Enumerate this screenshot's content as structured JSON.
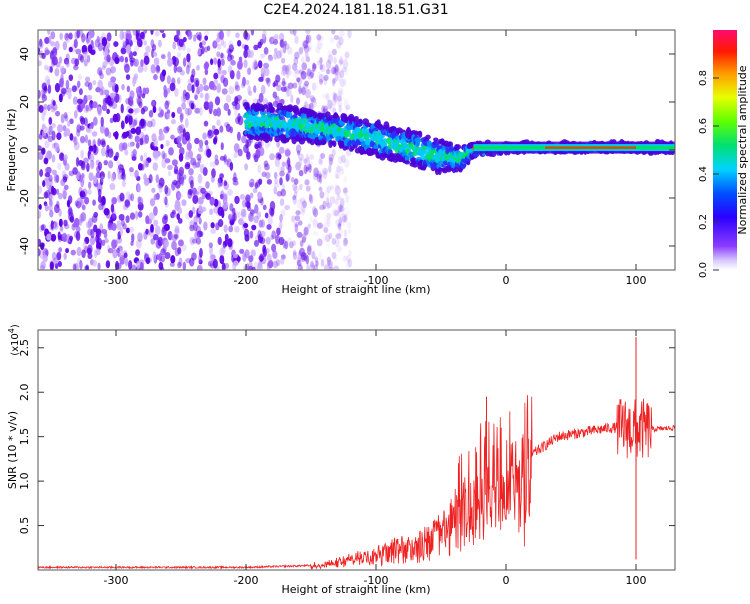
{
  "title": "C2E4.2024.181.18.51.G31",
  "chart_data": [
    {
      "type": "heatmap",
      "xlabel": "Height of straight line (km)",
      "ylabel": "Frequency (Hz)",
      "xlim": [
        -360,
        130
      ],
      "ylim": [
        -50,
        50
      ],
      "x_ticks": [
        -300,
        -200,
        -100,
        0,
        100
      ],
      "y_ticks": [
        -40,
        -20,
        0,
        20,
        40
      ],
      "colorbar": {
        "label": "Normalized spectral amplitude",
        "range": [
          0,
          1
        ],
        "ticks": [
          "0.0",
          "0.2",
          "0.4",
          "0.6",
          "0.8"
        ],
        "ticks_values": [
          0.0,
          0.2,
          0.4,
          0.6,
          0.8
        ]
      },
      "ridge": [
        {
          "x": -360,
          "y": 0,
          "width": 0,
          "note": ""
        },
        {
          "x": -200,
          "y": 12,
          "width": 7
        },
        {
          "x": -170,
          "y": 11,
          "width": 7
        },
        {
          "x": -140,
          "y": 9,
          "width": 6
        },
        {
          "x": -110,
          "y": 6,
          "width": 7
        },
        {
          "x": -80,
          "y": 2,
          "width": 7
        },
        {
          "x": -55,
          "y": -2,
          "width": 7
        },
        {
          "x": -35,
          "y": -4,
          "width": 5
        },
        {
          "x": -25,
          "y": 0,
          "width": 3
        },
        {
          "x": 0,
          "y": 1,
          "width": 2
        },
        {
          "x": 50,
          "y": 1,
          "width": 2
        },
        {
          "x": 100,
          "y": 1,
          "width": 2
        },
        {
          "x": 130,
          "y": 1,
          "width": 2
        }
      ],
      "noise_region": {
        "x_start": -360,
        "x_end": -140
      },
      "colors": {
        "noise": "#5a00e6",
        "ridge_edge": "#4b00d6",
        "ridge_mid": "#00c8ff",
        "ridge_core": "#00e060",
        "peak": "#ff2a00"
      }
    },
    {
      "type": "line",
      "xlabel": "Height of straight line (km)",
      "ylabel": "SNR (10 * v/v)",
      "y_multiplier_label": "(x10",
      "y_multiplier_exp": "4",
      "xlim": [
        -360,
        130
      ],
      "ylim": [
        0,
        2.7
      ],
      "x_ticks": [
        -300,
        -200,
        -100,
        0,
        100
      ],
      "y_ticks": [
        0.5,
        1.0,
        1.5,
        2.0,
        2.5
      ],
      "y_tick_labels": [
        "0.5",
        "1.0",
        "1.5",
        "2.0",
        "2.5"
      ],
      "series": [
        {
          "color": "#ee2222",
          "trend": [
            [
              -360,
              0.03
            ],
            [
              -200,
              0.03
            ],
            [
              -150,
              0.05
            ],
            [
              -130,
              0.1
            ],
            [
              -110,
              0.18
            ],
            [
              -90,
              0.28
            ],
            [
              -70,
              0.35
            ],
            [
              -50,
              0.55
            ],
            [
              -40,
              0.75
            ],
            [
              -30,
              0.95
            ],
            [
              -20,
              1.1
            ],
            [
              -10,
              1.15
            ],
            [
              0,
              1.2
            ],
            [
              20,
              1.3
            ],
            [
              40,
              1.5
            ],
            [
              60,
              1.55
            ],
            [
              80,
              1.6
            ],
            [
              90,
              1.6
            ],
            [
              100,
              1.58
            ],
            [
              110,
              1.58
            ],
            [
              130,
              1.6
            ]
          ],
          "spikes": [
            [
              100,
              2.62
            ],
            [
              100,
              0.12
            ],
            [
              90,
              1.85
            ],
            [
              -15,
              1.95
            ]
          ]
        }
      ]
    }
  ]
}
